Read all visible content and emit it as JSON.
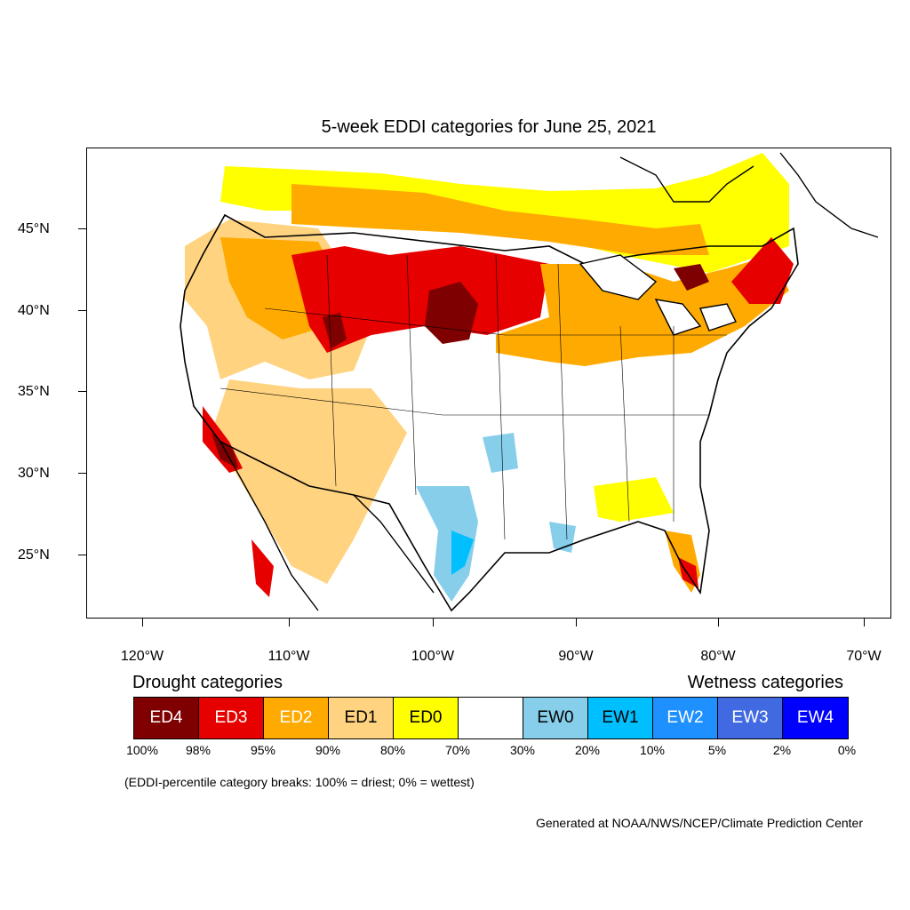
{
  "title": "5-week EDDI categories for June 25, 2021",
  "map": {
    "lat_labels": [
      "45°N",
      "40°N",
      "35°N",
      "30°N",
      "25°N"
    ],
    "lon_labels": [
      "120°W",
      "110°W",
      "100°W",
      "90°W",
      "80°W",
      "70°W"
    ],
    "colors": {
      "ED4": "#7f0000",
      "ED3": "#e60000",
      "ED2": "#ffaa00",
      "ED1": "#ffd37f",
      "ED0": "#ffff00",
      "neutral": "#ffffff",
      "EW0": "#87ceeb",
      "EW1": "#00bfff",
      "EW2": "#1e90ff",
      "EW3": "#4169e1",
      "EW4": "#0000ff"
    }
  },
  "legend": {
    "drought_heading": "Drought categories",
    "wetness_heading": "Wetness categories",
    "categories": [
      {
        "label": "ED4",
        "color": "#7f0000",
        "text_color": "#ffffff"
      },
      {
        "label": "ED3",
        "color": "#e60000",
        "text_color": "#ffffff"
      },
      {
        "label": "ED2",
        "color": "#ffaa00",
        "text_color": "#ffffff"
      },
      {
        "label": "ED1",
        "color": "#ffd37f",
        "text_color": "#000000"
      },
      {
        "label": "ED0",
        "color": "#ffff00",
        "text_color": "#000000"
      },
      {
        "label": "",
        "color": "#ffffff",
        "text_color": "#000000"
      },
      {
        "label": "EW0",
        "color": "#87ceeb",
        "text_color": "#000000"
      },
      {
        "label": "EW1",
        "color": "#00bfff",
        "text_color": "#000000"
      },
      {
        "label": "EW2",
        "color": "#1e90ff",
        "text_color": "#ffffff"
      },
      {
        "label": "EW3",
        "color": "#4169e1",
        "text_color": "#ffffff"
      },
      {
        "label": "EW4",
        "color": "#0000ff",
        "text_color": "#ffffff"
      }
    ],
    "breaks": [
      "100%",
      "98%",
      "95%",
      "90%",
      "80%",
      "70%",
      "30%",
      "20%",
      "10%",
      "5%",
      "2%",
      "0%"
    ]
  },
  "note": "(EDDI-percentile category breaks: 100% = driest; 0% = wettest)",
  "credit": "Generated at NOAA/NWS/NCEP/Climate Prediction Center"
}
